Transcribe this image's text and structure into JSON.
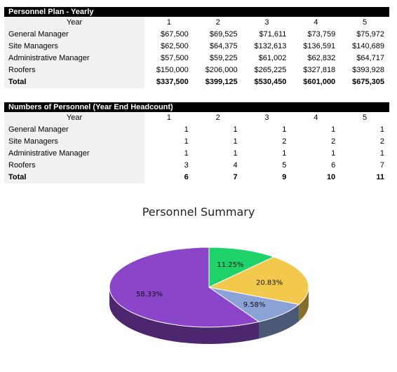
{
  "plan_table": {
    "title": "Personnel Plan - Yearly",
    "year_label": "Year",
    "years": [
      "1",
      "2",
      "3",
      "4",
      "5"
    ],
    "rows": [
      {
        "label": "General Manager",
        "values": [
          "$67,500",
          "$69,525",
          "$71,611",
          "$73,759",
          "$75,972"
        ]
      },
      {
        "label": "Site Managers",
        "values": [
          "$62,500",
          "$64,375",
          "$132,613",
          "$136,591",
          "$140,689"
        ]
      },
      {
        "label": "Administrative Manager",
        "values": [
          "$57,500",
          "$59,225",
          "$61,002",
          "$62,832",
          "$64,717"
        ]
      },
      {
        "label": "Roofers",
        "values": [
          "$150,000",
          "$206,000",
          "$265,225",
          "$327,818",
          "$393,928"
        ]
      }
    ],
    "total": {
      "label": "Total",
      "values": [
        "$337,500",
        "$399,125",
        "$530,450",
        "$601,000",
        "$675,305"
      ]
    }
  },
  "headcount_table": {
    "title": "Numbers of Personnel (Year End Headcount)",
    "year_label": "Year",
    "years": [
      "1",
      "2",
      "3",
      "4",
      "5"
    ],
    "rows": [
      {
        "label": "General Manager",
        "values": [
          "1",
          "1",
          "1",
          "1",
          "1"
        ]
      },
      {
        "label": "Site Managers",
        "values": [
          "1",
          "1",
          "2",
          "2",
          "2"
        ]
      },
      {
        "label": "Administrative Manager",
        "values": [
          "1",
          "1",
          "1",
          "1",
          "1"
        ]
      },
      {
        "label": "Roofers",
        "values": [
          "3",
          "4",
          "5",
          "6",
          "7"
        ]
      }
    ],
    "total": {
      "label": "Total",
      "values": [
        "6",
        "7",
        "9",
        "10",
        "11"
      ]
    }
  },
  "chart_data": {
    "type": "pie",
    "title": "Personnel Summary",
    "slices": [
      {
        "label": "11.25%",
        "value": 11.25,
        "color": "#1fd26a"
      },
      {
        "label": "20.83%",
        "value": 20.83,
        "color": "#f2c94c"
      },
      {
        "label": "9.58%",
        "value": 9.58,
        "color": "#8aa2d6"
      },
      {
        "label": "58.33%",
        "value": 58.33,
        "color": "#8a45c9"
      }
    ]
  }
}
